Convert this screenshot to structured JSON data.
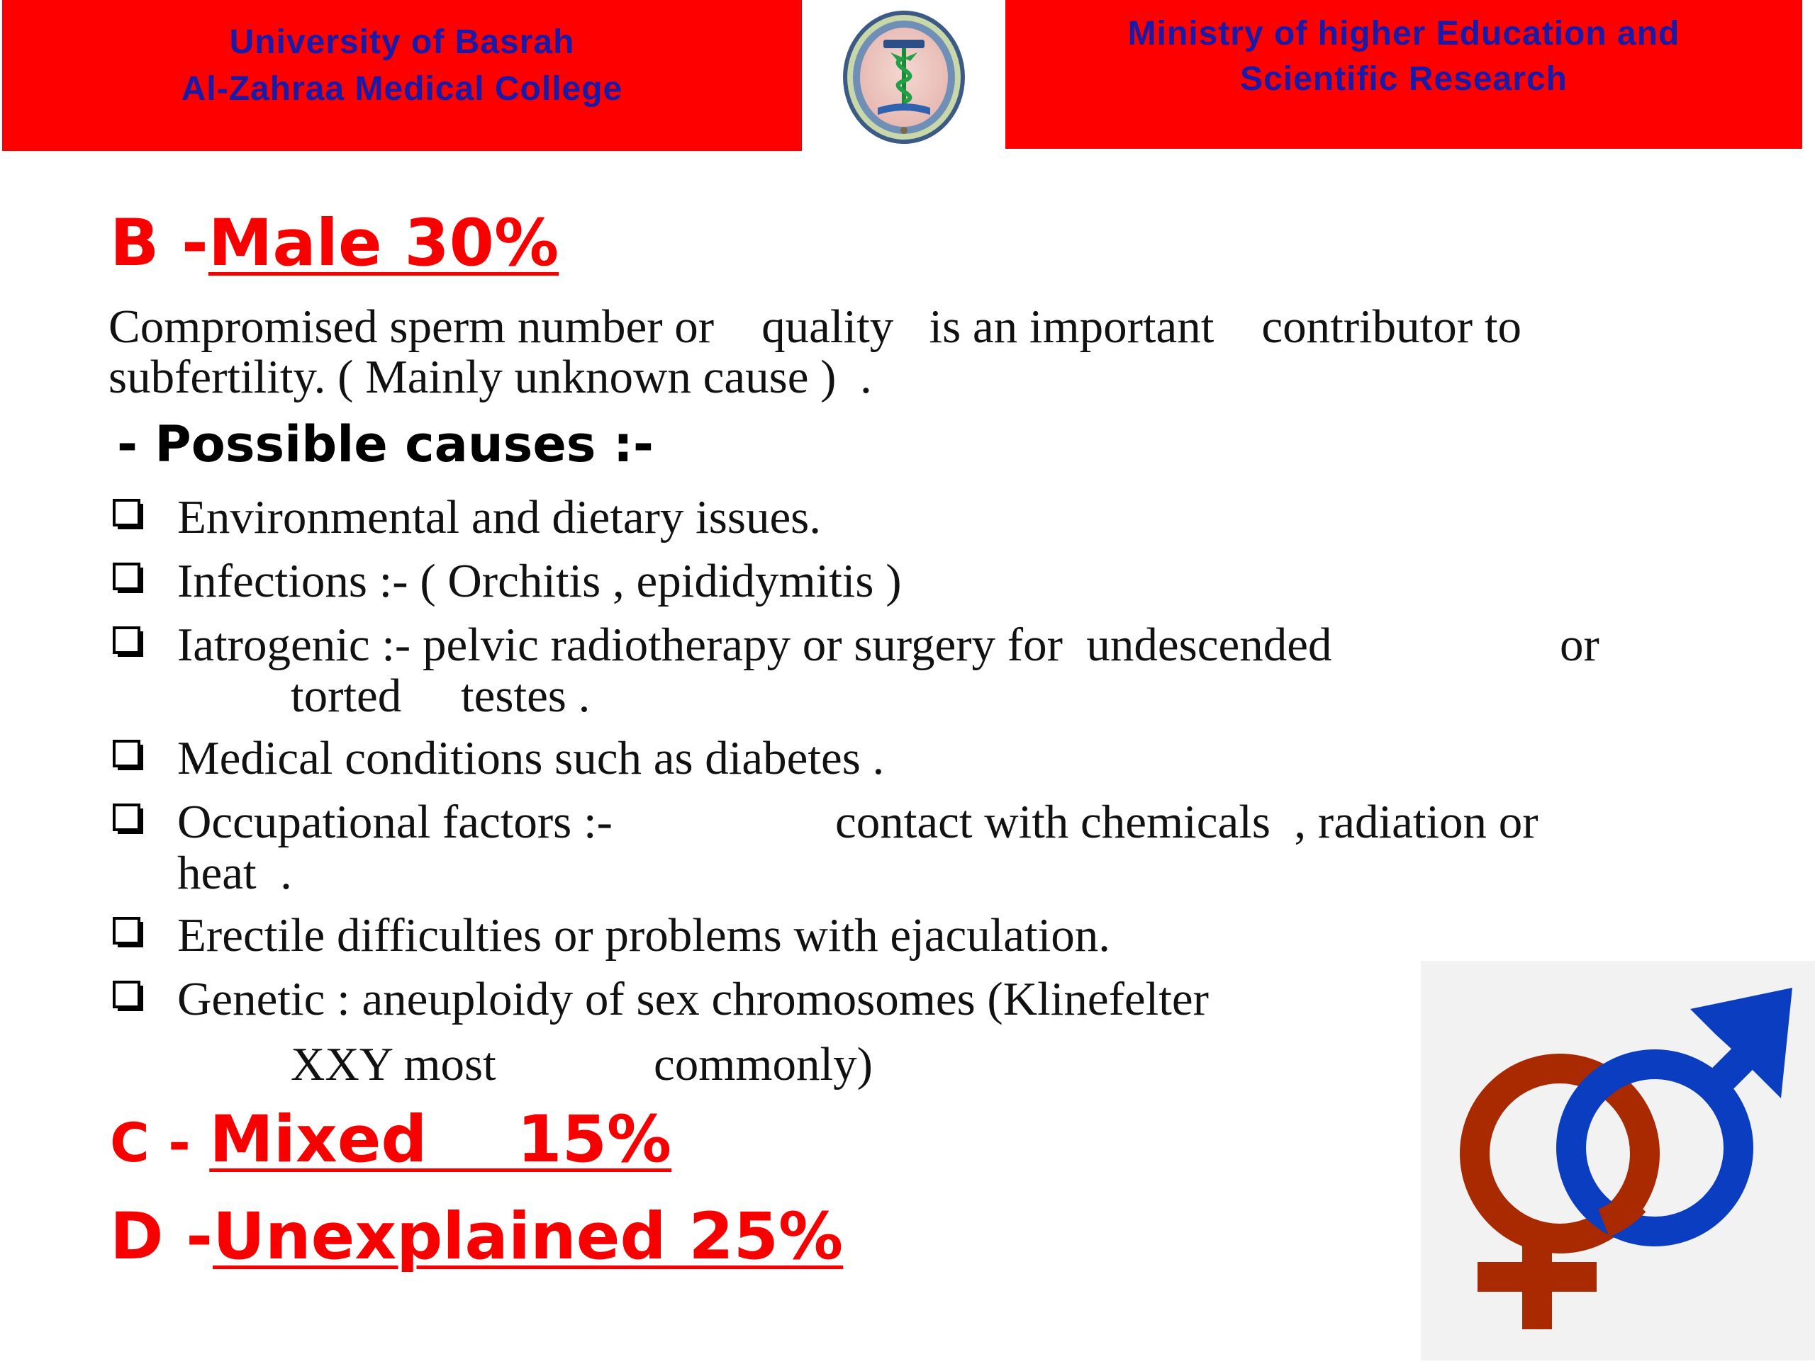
{
  "header": {
    "left_line1": "University of Basrah",
    "left_line2": "Al-Zahraa Medical College",
    "right_line1": "Ministry of higher Education  and",
    "right_line2": "Scientific Research",
    "logo_icon": "college-seal-icon",
    "banner_color": "#fe0000",
    "banner_text_color": "#1a1aa8"
  },
  "slide": {
    "male_prefix": "B -",
    "male_title": "Male 30%",
    "intro_line1": "Compromised sperm number or    quality   is an important    contributor to",
    "intro_line2": "subfertility. ( Mainly unknown cause )  .",
    "causes_heading": "- Possible causes :-",
    "bullets": [
      {
        "line1": "Environmental and dietary issues."
      },
      {
        "line1": "Infections :- ( Orchitis , epididymitis )"
      },
      {
        "line1": "Iatrogenic :- pelvic radiotherapy or surgery for  undescended",
        "line1b": "or",
        "line2": "torted     testes ."
      },
      {
        "line1": "Medical conditions such as diabetes ."
      },
      {
        "line1": "Occupational factors :-",
        "line1b": "contact with chemicals  , radiation or",
        "line2": "heat  ."
      },
      {
        "line1": "Erectile difficulties or problems with ejaculation."
      },
      {
        "line1": "Genetic : aneuploidy of sex chromosomes (Klinefelter",
        "line2": "XXY most",
        "line2b": "commonly)"
      }
    ],
    "mixed_prefix": "C - ",
    "mixed_title": "Mixed    15%",
    "unexplained_prefix": "D -",
    "unexplained_title": "Unexplained 25%",
    "heading_color": "#f80000",
    "symbol_icon": "male-female-symbol-icon",
    "female_symbol_color": "#a92a00",
    "male_symbol_color": "#0a3dbf"
  }
}
